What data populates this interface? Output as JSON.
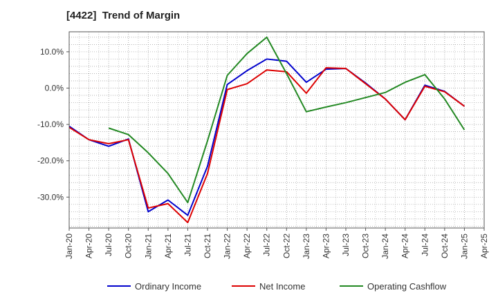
{
  "chart_data": {
    "type": "line",
    "title": "[4422]  Trend of Margin",
    "xlabel": "",
    "ylabel": "",
    "x": [
      "Jan-20",
      "Apr-20",
      "Jul-20",
      "Oct-20",
      "Jan-21",
      "Apr-21",
      "Jul-21",
      "Oct-21",
      "Jan-22",
      "Apr-22",
      "Jul-22",
      "Oct-22",
      "Jan-23",
      "Apr-23",
      "Jul-23",
      "Oct-23",
      "Jan-24",
      "Apr-24",
      "Jul-24",
      "Oct-24",
      "Jan-25",
      "Apr-25"
    ],
    "ylim": [
      -38.5,
      15.5
    ],
    "yticks": [
      10,
      0,
      -10,
      -20,
      -30
    ],
    "ytick_labels": [
      "10.0%",
      "0.0%",
      "-10.0%",
      "-20.0%",
      "-30.0%"
    ],
    "grid": true,
    "legend_position": "bottom",
    "series": [
      {
        "name": "Ordinary Income",
        "color": "#0000cc",
        "values": [
          -10.5,
          -14.2,
          -16.0,
          -14.0,
          -34.0,
          -30.8,
          -35.0,
          -21.5,
          1.0,
          4.8,
          8.0,
          7.4,
          1.6,
          5.2,
          5.4,
          1.4,
          -3.0,
          -8.7,
          0.8,
          -0.9,
          -5.0,
          null
        ]
      },
      {
        "name": "Net Income",
        "color": "#dd0000",
        "values": [
          -10.8,
          -14.2,
          -15.3,
          -14.2,
          -33.0,
          -31.8,
          -37.0,
          -23.5,
          -0.4,
          1.2,
          5.0,
          4.5,
          -1.4,
          5.6,
          5.4,
          1.2,
          -3.0,
          -8.7,
          0.5,
          -1.0,
          -5.0,
          null
        ]
      },
      {
        "name": "Operating Cashflow",
        "color": "#228822",
        "values": [
          null,
          null,
          -11.0,
          -12.8,
          -17.8,
          -23.5,
          -31.5,
          -14.5,
          3.5,
          9.5,
          14.0,
          4.0,
          -6.5,
          -5.2,
          -4.0,
          -2.6,
          -1.2,
          1.6,
          3.7,
          -3.0,
          -11.5,
          null
        ]
      }
    ]
  }
}
